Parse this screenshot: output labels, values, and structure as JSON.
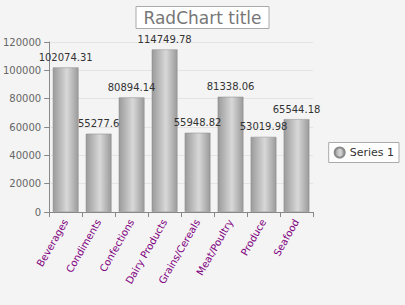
{
  "chart_data": {
    "type": "bar",
    "title": "RadChart title",
    "categories": [
      "Beverages",
      "Condiments",
      "Confections",
      "Dairy Products",
      "Grains/Cereals",
      "Meat/Poultry",
      "Produce",
      "Seafood"
    ],
    "series": [
      {
        "name": "Series 1",
        "color": "#9a9a9a",
        "values": [
          102074.31,
          55277.6,
          80894.14,
          114749.78,
          55948.82,
          81338.06,
          53019.98,
          65544.18
        ]
      }
    ],
    "ylim": [
      0,
      120000
    ],
    "yticks": [
      0,
      20000,
      40000,
      60000,
      80000,
      100000,
      120000
    ],
    "grid": true,
    "legend": "right",
    "data_labels": true
  }
}
